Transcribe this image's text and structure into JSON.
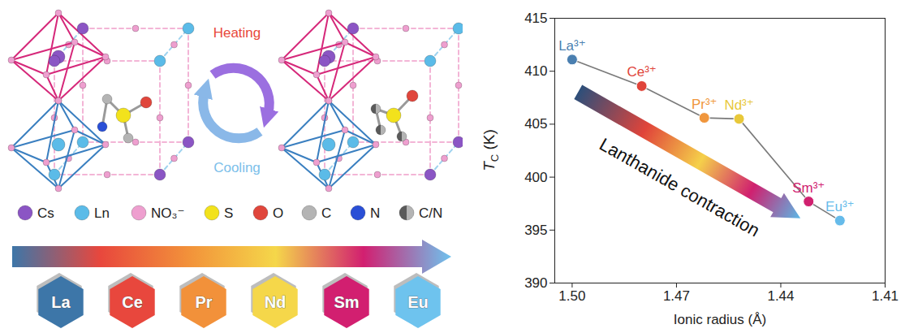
{
  "diagram": {
    "cycle": [
      {
        "label": "Heating",
        "color": "#e8483a"
      },
      {
        "label": "Cooling",
        "color": "#7cc0ea"
      }
    ],
    "legend": [
      {
        "label": "Cs",
        "color": "#8b55c4"
      },
      {
        "label": "Ln",
        "color": "#5bbbe8"
      },
      {
        "label": "NO₃⁻",
        "color": "#ee9fcf"
      },
      {
        "label": "S",
        "color": "#f2e21c"
      },
      {
        "label": "O",
        "color": "#e0463c"
      },
      {
        "label": "C",
        "color": "#b4b4b4"
      },
      {
        "label": "N",
        "color": "#2a4fd6"
      },
      {
        "label": "C/N",
        "color": "#5a5a5a"
      }
    ],
    "elements": [
      {
        "label": "La",
        "color": "#3d76a8"
      },
      {
        "label": "Ce",
        "color": "#e8473d"
      },
      {
        "label": "Pr",
        "color": "#f2913a"
      },
      {
        "label": "Nd",
        "color": "#f5d74a"
      },
      {
        "label": "Sm",
        "color": "#d21f70"
      },
      {
        "label": "Eu",
        "color": "#6ec3ee"
      }
    ]
  },
  "chart_data": {
    "type": "line",
    "marker": "circle",
    "categories": [
      "La³⁺",
      "Ce³⁺",
      "Pr³⁺",
      "Nd³⁺",
      "Sm³⁺",
      "Eu³⁺"
    ],
    "x": [
      1.5,
      1.48,
      1.462,
      1.452,
      1.432,
      1.423
    ],
    "values": [
      411.1,
      408.6,
      405.6,
      405.5,
      397.7,
      395.9
    ],
    "colors": [
      "#4a7fb0",
      "#e0443a",
      "#f0963c",
      "#e8c83a",
      "#d0206f",
      "#66bbea"
    ],
    "color": "#7a7a7a",
    "xlabel": "Ionic radius (Å)",
    "ylabel": "TC (K)",
    "xlim": [
      1.505,
      1.41
    ],
    "xticks": [
      {
        "value": 1.5,
        "label": "1.50"
      },
      1.47,
      1.44,
      1.41
    ],
    "ylim": [
      390,
      415
    ],
    "yticks": [
      390,
      395,
      400,
      405,
      410,
      415
    ],
    "grid": false,
    "annotation": "Lanthanide contraction"
  }
}
